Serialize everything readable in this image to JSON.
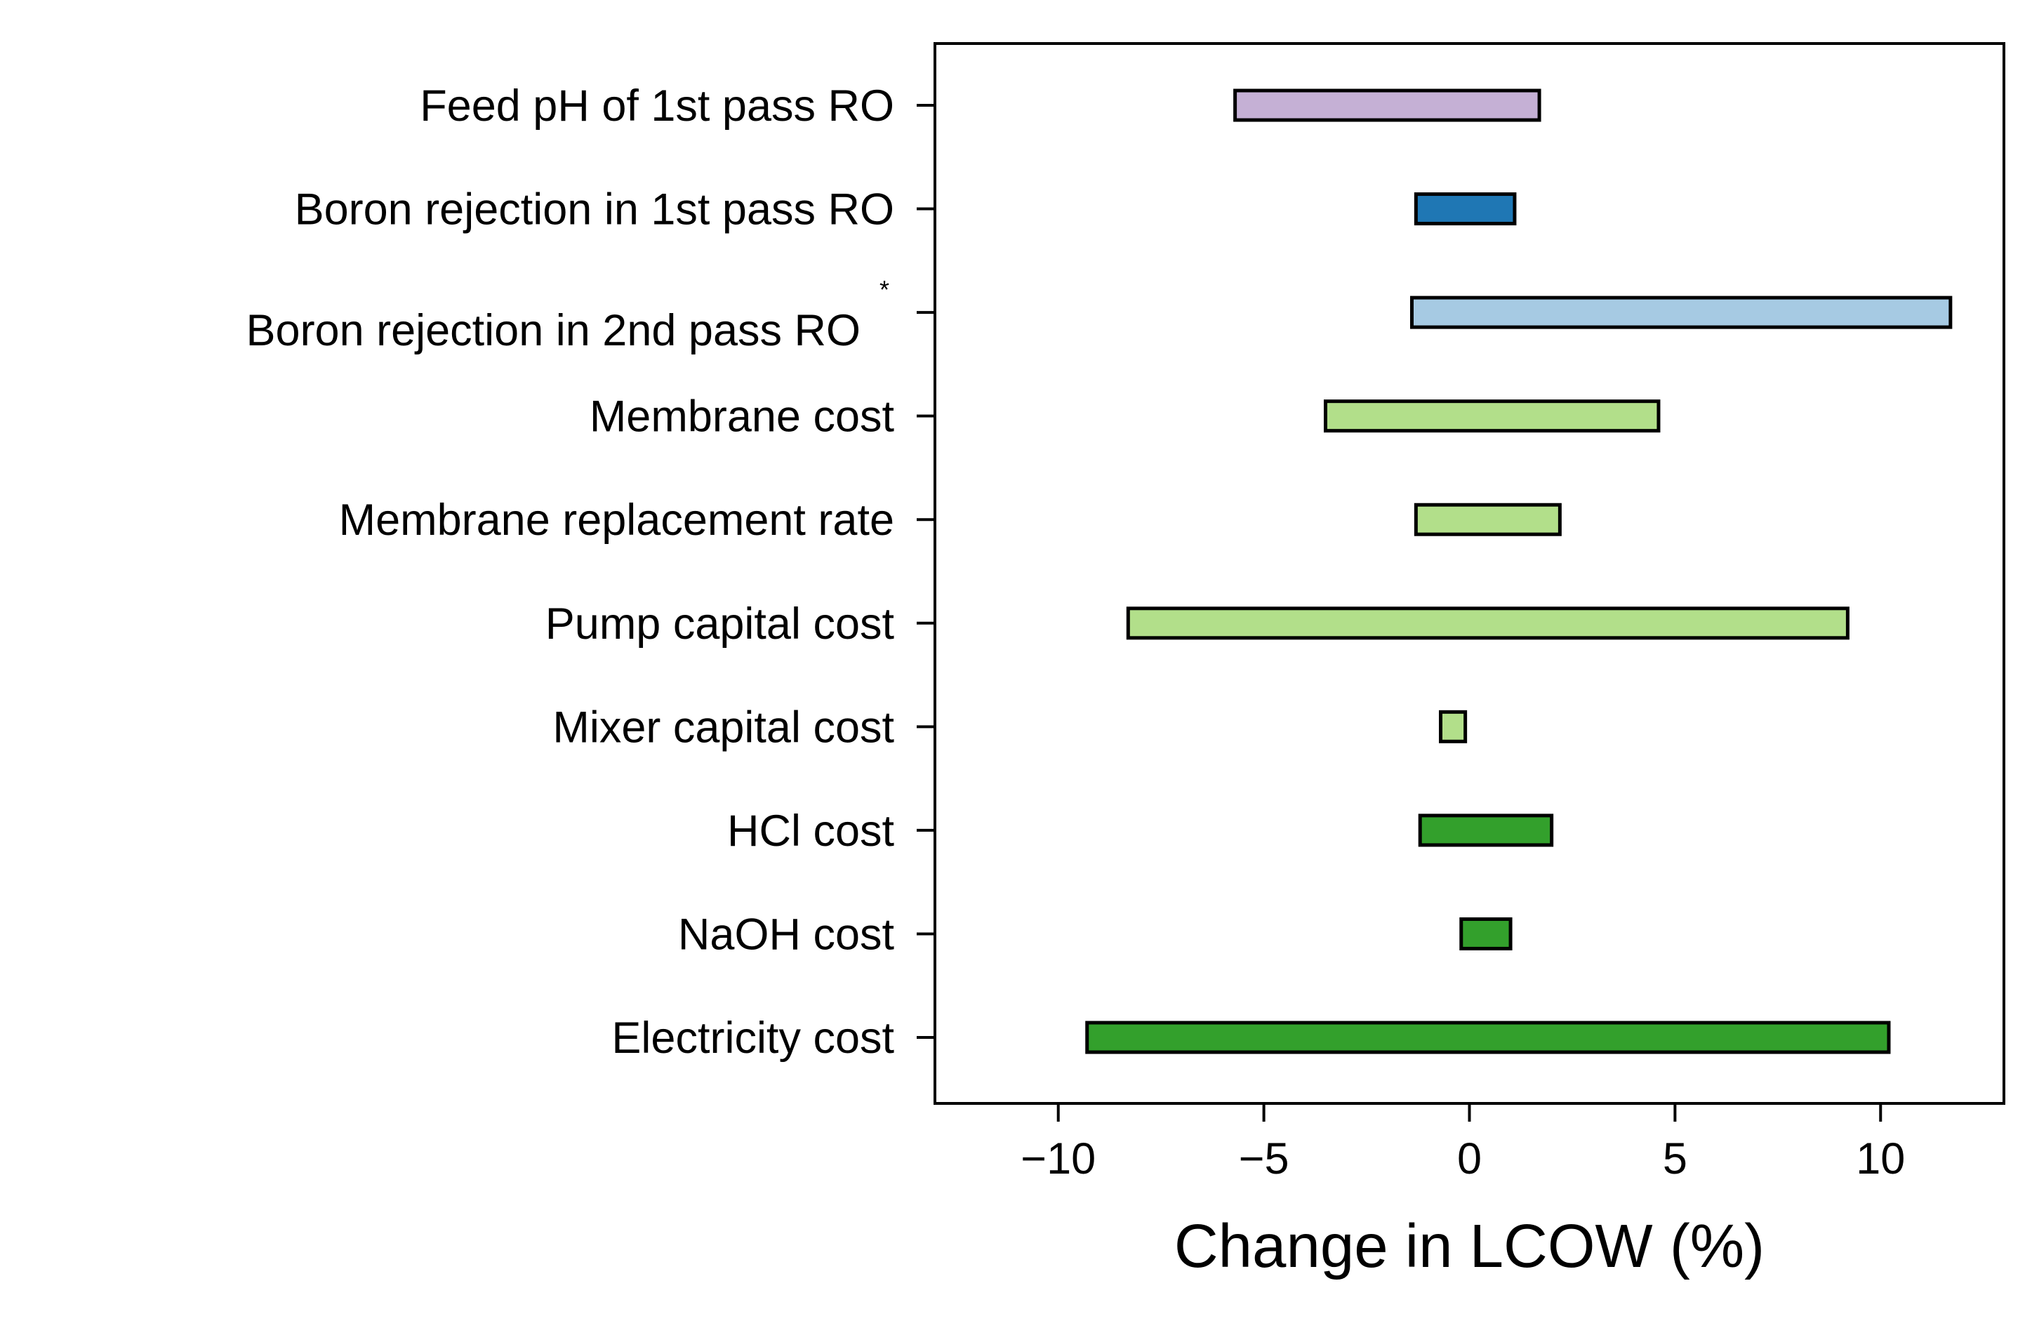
{
  "chart_data": {
    "type": "bar",
    "orientation": "horizontal",
    "title": "",
    "xlabel": "Change in LCOW (%)",
    "ylabel": "",
    "xlim": [
      -13,
      13
    ],
    "xticks": [
      -10,
      -5,
      0,
      5,
      10
    ],
    "xtick_labels": [
      "−10",
      "−5",
      "0",
      "5",
      "10"
    ],
    "grid": false,
    "legend": "none",
    "categories": [
      "Feed pH of 1st pass RO",
      "Boron rejection in 1st pass RO",
      "Boron rejection in 2nd pass RO",
      "Membrane cost",
      "Membrane replacement rate",
      "Pump capital cost",
      "Mixer capital cost",
      "HCl cost",
      "NaOH cost",
      "Electricity cost"
    ],
    "annotation": "*",
    "annotated_category": "Boron rejection in 2nd pass RO",
    "ranges": [
      {
        "low": -5.7,
        "high": 1.7,
        "color": "#c5b0d5"
      },
      {
        "low": -1.3,
        "high": 1.1,
        "color": "#1f77b4"
      },
      {
        "low": -1.4,
        "high": 11.7,
        "color": "#a6cae3"
      },
      {
        "low": -3.5,
        "high": 4.6,
        "color": "#b2df8a"
      },
      {
        "low": -1.3,
        "high": 2.2,
        "color": "#b2df8a"
      },
      {
        "low": -8.3,
        "high": 9.2,
        "color": "#b2df8a"
      },
      {
        "low": -0.7,
        "high": -0.1,
        "color": "#b2df8a"
      },
      {
        "low": -1.2,
        "high": 2.0,
        "color": "#33a02c"
      },
      {
        "low": -0.2,
        "high": 1.0,
        "color": "#33a02c"
      },
      {
        "low": -9.3,
        "high": 10.2,
        "color": "#33a02c"
      }
    ]
  }
}
